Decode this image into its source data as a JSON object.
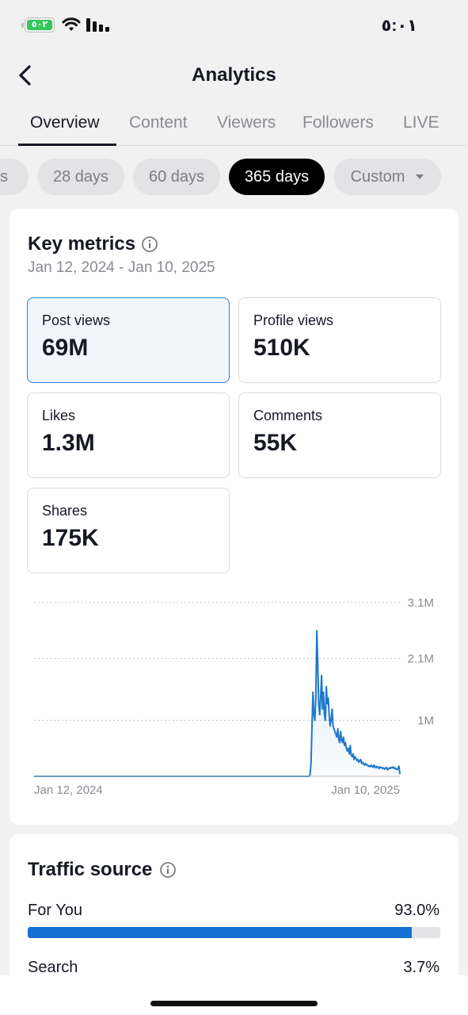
{
  "status_bar": {
    "time": "٥:٠١",
    "battery_label": "٥٠٢"
  },
  "header": {
    "title": "Analytics"
  },
  "tabs": [
    {
      "label": "Overview",
      "active": true
    },
    {
      "label": "Content"
    },
    {
      "label": "Viewers"
    },
    {
      "label": "Followers"
    },
    {
      "label": "LIVE"
    }
  ],
  "date_chips": [
    {
      "label": "s"
    },
    {
      "label": "28 days"
    },
    {
      "label": "60 days"
    },
    {
      "label": "365 days",
      "active": true
    },
    {
      "label": "Custom"
    }
  ],
  "key_metrics": {
    "title": "Key metrics",
    "date_range": "Jan 12, 2024 - Jan 10, 2025",
    "metrics": [
      {
        "label": "Post views",
        "value": "69M",
        "selected": true
      },
      {
        "label": "Profile views",
        "value": "510K"
      },
      {
        "label": "Likes",
        "value": "1.3M"
      },
      {
        "label": "Comments",
        "value": "55K"
      },
      {
        "label": "Shares",
        "value": "175K"
      }
    ]
  },
  "chart_data": {
    "type": "area",
    "title": "",
    "xlabel": "",
    "ylabel": "",
    "x_tick_labels": [
      "Jan 12, 2024",
      "Jan 10, 2025"
    ],
    "y_tick_labels": [
      "3.1M",
      "2.1M",
      "1M"
    ],
    "y_ticks": [
      3100000,
      2100000,
      1000000
    ],
    "ylim": [
      0,
      3100000
    ],
    "grid": true,
    "color": "#1f78c9",
    "series": [
      {
        "values": [
          0,
          0,
          0,
          0,
          0,
          0,
          0,
          0,
          0,
          0,
          0,
          0,
          0,
          0,
          0,
          0,
          0,
          0,
          0,
          0,
          0,
          0,
          0,
          0,
          0,
          0,
          0,
          0,
          0,
          0,
          0,
          0,
          0,
          0,
          0,
          0,
          0,
          0,
          0,
          0,
          0,
          0,
          0,
          0,
          0,
          0,
          0,
          0,
          0,
          0,
          0,
          0,
          0,
          0,
          0,
          0,
          0,
          0,
          0,
          0,
          0,
          0,
          0,
          0,
          0,
          0,
          0,
          0,
          0,
          0,
          0,
          0,
          0,
          0,
          0,
          0,
          0,
          0,
          0,
          0,
          0,
          0,
          0,
          0,
          0,
          0,
          0,
          0,
          0,
          0,
          0,
          0,
          0,
          0,
          0,
          0,
          0,
          0,
          0,
          0,
          0,
          0,
          0,
          0,
          0,
          0,
          0,
          0,
          0,
          0,
          0,
          0,
          0,
          0,
          0,
          0,
          0,
          0,
          0,
          0,
          0,
          0,
          0,
          0,
          0,
          0,
          0,
          0,
          0,
          0,
          0,
          0,
          0,
          0,
          0,
          0,
          0,
          0,
          0,
          0,
          0,
          0,
          0,
          0,
          0,
          0,
          0,
          0,
          0,
          0,
          0,
          0,
          0,
          0,
          0,
          0,
          0,
          0,
          0,
          0,
          0,
          0,
          0,
          0,
          0,
          0,
          0,
          0,
          0,
          0,
          0,
          0,
          0,
          0,
          0,
          0,
          0,
          0,
          0,
          0,
          0,
          0,
          0,
          0,
          0,
          0,
          0,
          0,
          0,
          0,
          0,
          0,
          0,
          0,
          0,
          0,
          0,
          0,
          0,
          0,
          0,
          0,
          0,
          0,
          0,
          0,
          0,
          0,
          0,
          0,
          0,
          0,
          0,
          0,
          0,
          0,
          0,
          0,
          0,
          0,
          0,
          0,
          0,
          0,
          0,
          0,
          0,
          0,
          0,
          0,
          0,
          0,
          0,
          0,
          0,
          0,
          0,
          0,
          0,
          0,
          0,
          0,
          0,
          0,
          0,
          0,
          0,
          0,
          0,
          0,
          0,
          0,
          0,
          0,
          0,
          0,
          0,
          0,
          0,
          0,
          0,
          0,
          0,
          0,
          0,
          0,
          0,
          0,
          0,
          0,
          0,
          0,
          0,
          0,
          0,
          0,
          0,
          0,
          0,
          0,
          0,
          0,
          0,
          0,
          0,
          0,
          0,
          0,
          0,
          30000,
          250000,
          900000,
          1500000,
          1100000,
          1000000,
          1400000,
          2600000,
          2000000,
          1300000,
          1100000,
          1400000,
          1800000,
          1200000,
          1500000,
          1100000,
          1000000,
          1600000,
          1300000,
          1400000,
          1100000,
          900000,
          1000000,
          1200000,
          900000,
          850000,
          800000,
          750000,
          700000,
          850000,
          650000,
          600000,
          800000,
          650000,
          600000,
          700000,
          550000,
          600000,
          500000,
          450000,
          500000,
          400000,
          550000,
          380000,
          350000,
          400000,
          300000,
          350000,
          320000,
          280000,
          300000,
          250000,
          280000,
          300000,
          230000,
          250000,
          220000,
          200000,
          230000,
          210000,
          200000,
          180000,
          190000,
          170000,
          200000,
          180000,
          160000,
          200000,
          170000,
          150000,
          180000,
          160000,
          140000,
          170000,
          150000,
          160000,
          140000,
          150000,
          130000,
          140000,
          160000,
          120000,
          130000,
          150000,
          140000,
          160000,
          150000,
          170000,
          140000,
          150000,
          130000,
          120000,
          140000,
          180000,
          40000
        ]
      }
    ]
  },
  "traffic_source": {
    "title": "Traffic source",
    "items": [
      {
        "label": "For You",
        "value": "93.0%",
        "percent": 93.0
      },
      {
        "label": "Search",
        "value": "3.7%",
        "percent": 3.7
      }
    ]
  }
}
